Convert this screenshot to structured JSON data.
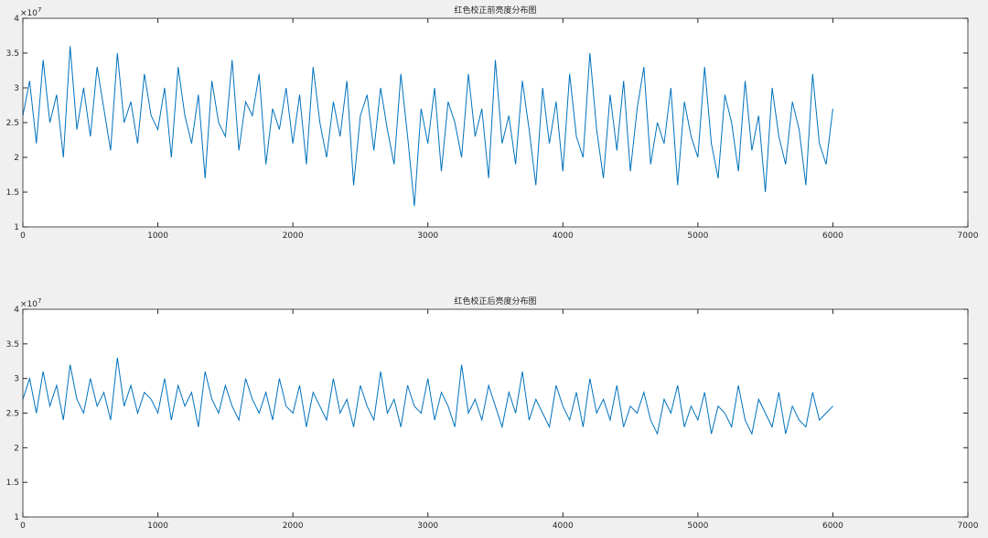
{
  "chart_data": [
    {
      "type": "line",
      "title": "红色校正前亮度分布图",
      "y_exponent_base": "×10",
      "y_exponent_power": "7",
      "x": [
        0,
        50,
        100,
        150,
        200,
        250,
        300,
        350,
        400,
        450,
        500,
        550,
        600,
        650,
        700,
        750,
        800,
        850,
        900,
        950,
        1000,
        1050,
        1100,
        1150,
        1200,
        1250,
        1300,
        1350,
        1400,
        1450,
        1500,
        1550,
        1600,
        1650,
        1700,
        1750,
        1800,
        1850,
        1900,
        1950,
        2000,
        2050,
        2100,
        2150,
        2200,
        2250,
        2300,
        2350,
        2400,
        2450,
        2500,
        2550,
        2600,
        2650,
        2700,
        2750,
        2800,
        2850,
        2900,
        2950,
        3000,
        3050,
        3100,
        3150,
        3200,
        3250,
        3300,
        3350,
        3400,
        3450,
        3500,
        3550,
        3600,
        3650,
        3700,
        3750,
        3800,
        3850,
        3900,
        3950,
        4000,
        4050,
        4100,
        4150,
        4200,
        4250,
        4300,
        4350,
        4400,
        4450,
        4500,
        4550,
        4600,
        4650,
        4700,
        4750,
        4800,
        4850,
        4900,
        4950,
        5000,
        5050,
        5100,
        5150,
        5200,
        5250,
        5300,
        5350,
        5400,
        5450,
        5500,
        5550,
        5600,
        5650,
        5700,
        5750,
        5800,
        5850,
        5900,
        5950,
        6000
      ],
      "series": [
        {
          "color": "#0072bd",
          "values": [
            2.6,
            3.1,
            2.2,
            3.4,
            2.5,
            2.9,
            2.0,
            3.6,
            2.4,
            3.0,
            2.3,
            3.3,
            2.7,
            2.1,
            3.5,
            2.5,
            2.8,
            2.2,
            3.2,
            2.6,
            2.4,
            3.0,
            2.0,
            3.3,
            2.6,
            2.2,
            2.9,
            1.7,
            3.1,
            2.5,
            2.3,
            3.4,
            2.1,
            2.8,
            2.6,
            3.2,
            1.9,
            2.7,
            2.4,
            3.0,
            2.2,
            2.9,
            1.9,
            3.3,
            2.5,
            2.0,
            2.8,
            2.3,
            3.1,
            1.6,
            2.6,
            2.9,
            2.1,
            3.0,
            2.4,
            1.9,
            3.2,
            2.3,
            1.3,
            2.7,
            2.2,
            3.0,
            1.8,
            2.8,
            2.5,
            2.0,
            3.2,
            2.3,
            2.7,
            1.7,
            3.4,
            2.2,
            2.6,
            1.9,
            3.1,
            2.4,
            1.6,
            3.0,
            2.2,
            2.8,
            1.8,
            3.2,
            2.3,
            2.0,
            3.5,
            2.4,
            1.7,
            2.9,
            2.1,
            3.1,
            1.8,
            2.7,
            3.3,
            1.9,
            2.5,
            2.2,
            3.0,
            1.6,
            2.8,
            2.3,
            2.0,
            3.3,
            2.2,
            1.7,
            2.9,
            2.5,
            1.8,
            3.1,
            2.1,
            2.6,
            1.5,
            3.0,
            2.3,
            1.9,
            2.8,
            2.4,
            1.6,
            3.2,
            2.2,
            1.9,
            2.7
          ]
        }
      ],
      "xlim": [
        0,
        7000
      ],
      "xticks": [
        0,
        1000,
        2000,
        3000,
        4000,
        5000,
        6000,
        7000
      ],
      "ylim": [
        1,
        4
      ],
      "yticks": [
        1,
        1.5,
        2,
        2.5,
        3,
        3.5,
        4
      ]
    },
    {
      "type": "line",
      "title": "红色校正后亮度分布图",
      "y_exponent_base": "×10",
      "y_exponent_power": "7",
      "x": [
        0,
        50,
        100,
        150,
        200,
        250,
        300,
        350,
        400,
        450,
        500,
        550,
        600,
        650,
        700,
        750,
        800,
        850,
        900,
        950,
        1000,
        1050,
        1100,
        1150,
        1200,
        1250,
        1300,
        1350,
        1400,
        1450,
        1500,
        1550,
        1600,
        1650,
        1700,
        1750,
        1800,
        1850,
        1900,
        1950,
        2000,
        2050,
        2100,
        2150,
        2200,
        2250,
        2300,
        2350,
        2400,
        2450,
        2500,
        2550,
        2600,
        2650,
        2700,
        2750,
        2800,
        2850,
        2900,
        2950,
        3000,
        3050,
        3100,
        3150,
        3200,
        3250,
        3300,
        3350,
        3400,
        3450,
        3500,
        3550,
        3600,
        3650,
        3700,
        3750,
        3800,
        3850,
        3900,
        3950,
        4000,
        4050,
        4100,
        4150,
        4200,
        4250,
        4300,
        4350,
        4400,
        4450,
        4500,
        4550,
        4600,
        4650,
        4700,
        4750,
        4800,
        4850,
        4900,
        4950,
        5000,
        5050,
        5100,
        5150,
        5200,
        5250,
        5300,
        5350,
        5400,
        5450,
        5500,
        5550,
        5600,
        5650,
        5700,
        5750,
        5800,
        5850,
        5900,
        5950,
        6000
      ],
      "series": [
        {
          "color": "#0072bd",
          "values": [
            2.7,
            3.0,
            2.5,
            3.1,
            2.6,
            2.9,
            2.4,
            3.2,
            2.7,
            2.5,
            3.0,
            2.6,
            2.8,
            2.4,
            3.3,
            2.6,
            2.9,
            2.5,
            2.8,
            2.7,
            2.5,
            3.0,
            2.4,
            2.9,
            2.6,
            2.8,
            2.3,
            3.1,
            2.7,
            2.5,
            2.9,
            2.6,
            2.4,
            3.0,
            2.7,
            2.5,
            2.8,
            2.4,
            3.0,
            2.6,
            2.5,
            2.9,
            2.3,
            2.8,
            2.6,
            2.4,
            3.0,
            2.5,
            2.7,
            2.3,
            2.9,
            2.6,
            2.4,
            3.1,
            2.5,
            2.7,
            2.3,
            2.9,
            2.6,
            2.5,
            3.0,
            2.4,
            2.8,
            2.6,
            2.3,
            3.2,
            2.5,
            2.7,
            2.4,
            2.9,
            2.6,
            2.3,
            2.8,
            2.5,
            3.1,
            2.4,
            2.7,
            2.5,
            2.3,
            2.9,
            2.6,
            2.4,
            2.8,
            2.3,
            3.0,
            2.5,
            2.7,
            2.4,
            2.9,
            2.3,
            2.6,
            2.5,
            2.8,
            2.4,
            2.2,
            2.7,
            2.5,
            2.9,
            2.3,
            2.6,
            2.4,
            2.8,
            2.2,
            2.6,
            2.5,
            2.3,
            2.9,
            2.4,
            2.2,
            2.7,
            2.5,
            2.3,
            2.8,
            2.2,
            2.6,
            2.4,
            2.3,
            2.8,
            2.4,
            2.5,
            2.6
          ]
        }
      ],
      "xlim": [
        0,
        7000
      ],
      "xticks": [
        0,
        1000,
        2000,
        3000,
        4000,
        5000,
        6000,
        7000
      ],
      "ylim": [
        1,
        4
      ],
      "yticks": [
        1,
        1.5,
        2,
        2.5,
        3,
        3.5,
        4
      ]
    }
  ]
}
